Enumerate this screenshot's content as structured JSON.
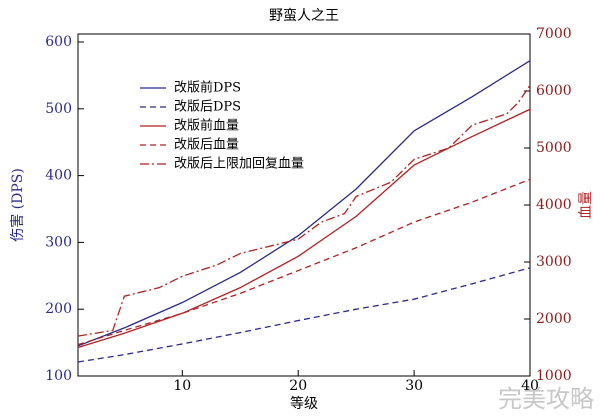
{
  "chart_data": {
    "type": "line",
    "title": "野蛮人之王",
    "xlabel": "等级",
    "ylabel": "伤害 (DPS)",
    "y2label": "血量",
    "xlim": [
      1,
      40
    ],
    "xticks": [
      10,
      20,
      30,
      40
    ],
    "ylim": [
      100,
      612
    ],
    "yticks": [
      100,
      200,
      300,
      400,
      500,
      600
    ],
    "y2lim": [
      1000,
      7000
    ],
    "y2ticks": [
      1000,
      2000,
      3000,
      4000,
      5000,
      6000,
      7000
    ],
    "legend": "upper left",
    "watermark": "完美攻略",
    "series": [
      {
        "name": "改版前DPS",
        "color": "#2a2a8c",
        "style": "solid",
        "axis": "y",
        "x": [
          1,
          5,
          10,
          15,
          20,
          25,
          30,
          35,
          40
        ],
        "values": [
          145,
          172,
          210,
          255,
          310,
          380,
          467,
          518,
          572
        ]
      },
      {
        "name": "改版后DPS",
        "color": "#2a2a8c",
        "style": "dashed",
        "axis": "y",
        "x": [
          1,
          5,
          10,
          15,
          20,
          25,
          30,
          35,
          40
        ],
        "values": [
          121,
          132,
          148,
          165,
          183,
          200,
          215,
          238,
          262
        ]
      },
      {
        "name": "改版前血量",
        "color": "#b22222",
        "style": "solid",
        "axis": "y2",
        "x": [
          1,
          5,
          10,
          15,
          20,
          25,
          30,
          35,
          40
        ],
        "values": [
          1500,
          1750,
          2100,
          2550,
          3100,
          3800,
          4700,
          5200,
          5680
        ]
      },
      {
        "name": "改版后血量",
        "color": "#b22222",
        "style": "dashed",
        "axis": "y2",
        "x": [
          1,
          5,
          10,
          15,
          20,
          25,
          30,
          35,
          40
        ],
        "values": [
          1550,
          1800,
          2100,
          2450,
          2850,
          3250,
          3700,
          4050,
          4450
        ]
      },
      {
        "name": "改版后上限加回复血量",
        "color": "#b22222",
        "style": "dashdot",
        "axis": "y2",
        "x": [
          1,
          4,
          5,
          8,
          10,
          13,
          15,
          18,
          20,
          22,
          24,
          25,
          28,
          30,
          33,
          35,
          38,
          39,
          40
        ],
        "values": [
          1700,
          1800,
          2400,
          2550,
          2750,
          2950,
          3150,
          3300,
          3400,
          3700,
          3850,
          4150,
          4400,
          4800,
          5000,
          5400,
          5600,
          5800,
          6100
        ]
      }
    ]
  }
}
